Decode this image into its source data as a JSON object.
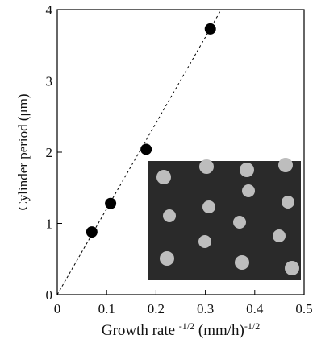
{
  "chart_data": {
    "type": "scatter",
    "xlabel": [
      "Growth rate ",
      "-1/2",
      " (mm/h)",
      "-1/2"
    ],
    "ylabel": "Cylinder period (μm)",
    "x": [
      0.07,
      0.108,
      0.18,
      0.31
    ],
    "values": [
      0.88,
      1.28,
      2.04,
      3.73
    ],
    "color": "#000000",
    "fit_line": {
      "x": [
        0,
        0.332
      ],
      "y": [
        0,
        4
      ]
    },
    "xlim": [
      0,
      0.5
    ],
    "xticks": [
      0,
      0.1,
      0.2,
      0.3,
      0.4,
      0.5
    ],
    "ylim": [
      0,
      4
    ],
    "yticks": [
      0,
      1,
      2,
      3,
      4
    ]
  }
}
